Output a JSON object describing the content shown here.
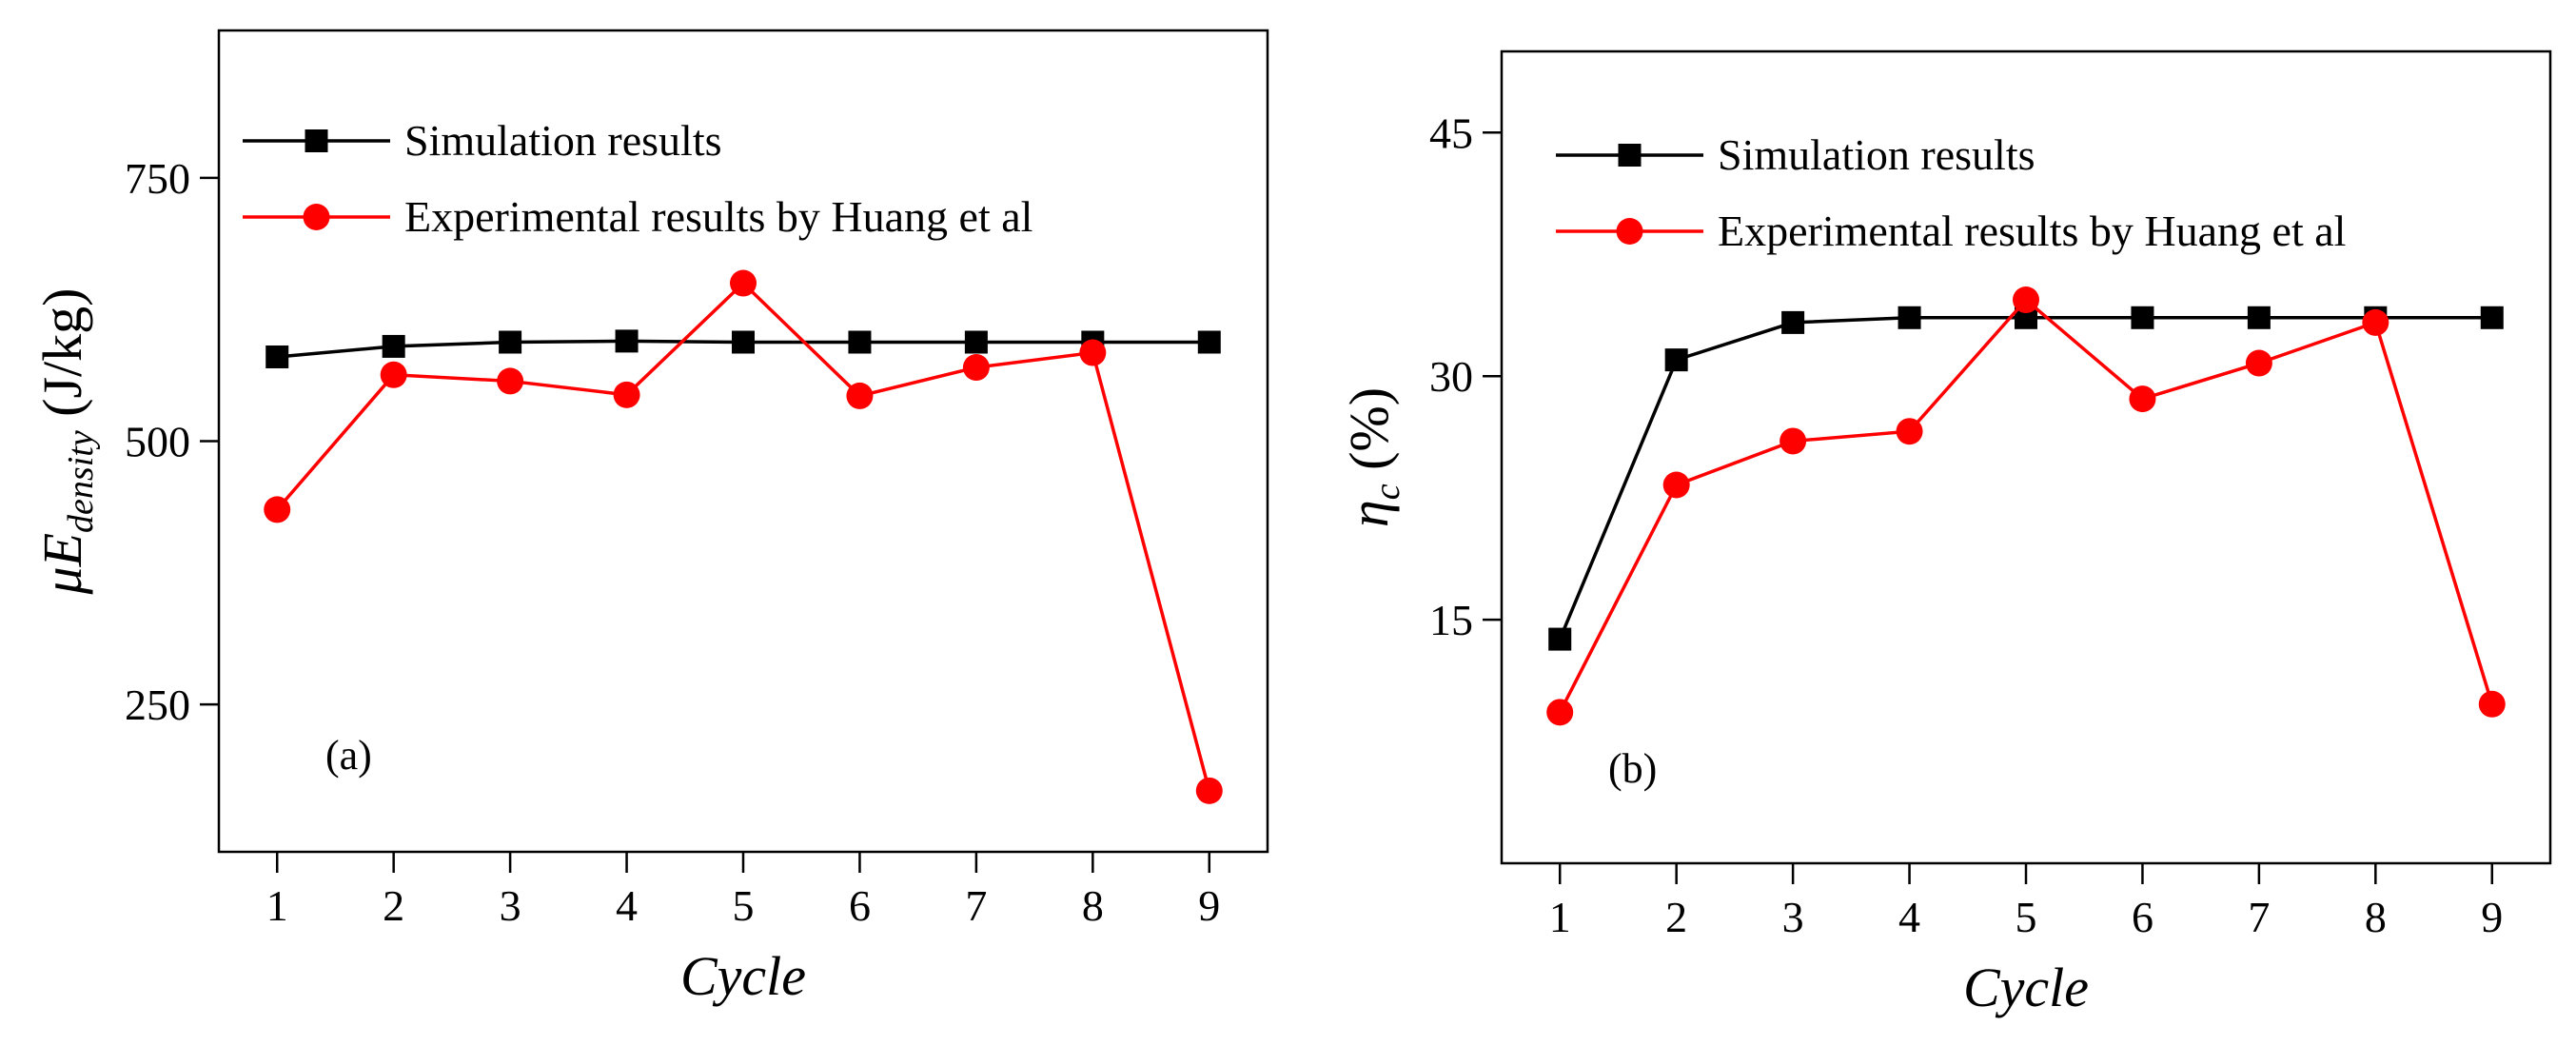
{
  "chart_data": [
    {
      "type": "line",
      "panel_label": "(a)",
      "xlabel": "Cycle",
      "ylabel": {
        "prefix": "μE",
        "subscript": "density",
        "unit": " (J/kg)"
      },
      "x": [
        1,
        2,
        3,
        4,
        5,
        6,
        7,
        8,
        9
      ],
      "xlim": [
        0.5,
        9.5
      ],
      "ylim": [
        110,
        890
      ],
      "yticks": [
        250,
        500,
        750
      ],
      "grid": false,
      "legend_position": "top-left",
      "series": [
        {
          "name": "Simulation results",
          "color": "#000000",
          "marker": "square",
          "values": [
            580,
            590,
            594,
            595,
            594,
            594,
            594,
            594,
            594
          ]
        },
        {
          "name": "Experimental results by Huang et al",
          "color": "#ff0000",
          "marker": "circle",
          "values": [
            435,
            563,
            557,
            544,
            650,
            543,
            570,
            584,
            168
          ]
        }
      ]
    },
    {
      "type": "line",
      "panel_label": "(b)",
      "xlabel": "Cycle",
      "ylabel": {
        "prefix": "η",
        "subscript": "c",
        "unit": " (%)"
      },
      "x": [
        1,
        2,
        3,
        4,
        5,
        6,
        7,
        8,
        9
      ],
      "xlim": [
        0.5,
        9.5
      ],
      "ylim": [
        0,
        50
      ],
      "yticks": [
        15,
        30,
        45
      ],
      "grid": false,
      "legend_position": "top-left",
      "series": [
        {
          "name": "Simulation results",
          "color": "#000000",
          "marker": "square",
          "values": [
            13.8,
            31.0,
            33.3,
            33.6,
            33.6,
            33.6,
            33.6,
            33.6,
            33.6
          ]
        },
        {
          "name": "Experimental results by Huang et al",
          "color": "#ff0000",
          "marker": "circle",
          "values": [
            9.3,
            23.3,
            26.0,
            26.6,
            34.7,
            28.6,
            30.8,
            33.3,
            9.8
          ]
        }
      ]
    }
  ]
}
